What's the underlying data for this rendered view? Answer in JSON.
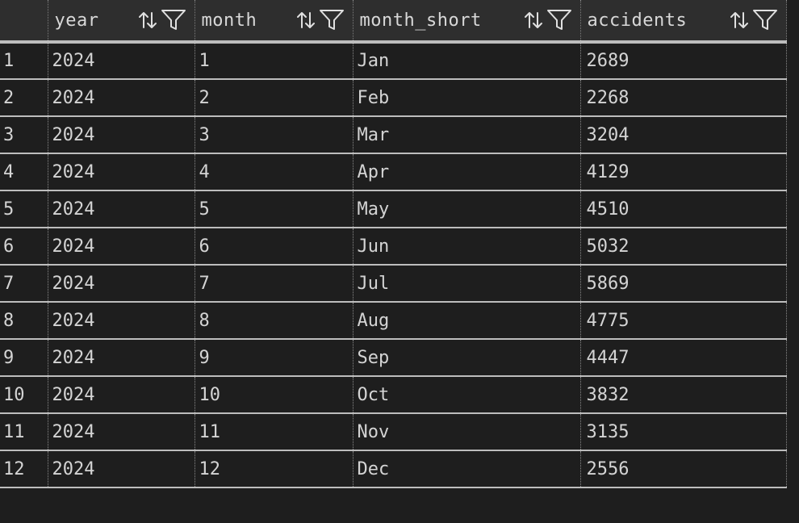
{
  "columns": [
    {
      "key": "index",
      "label": ""
    },
    {
      "key": "year",
      "label": "year"
    },
    {
      "key": "month",
      "label": "month"
    },
    {
      "key": "month_short",
      "label": "month_short"
    },
    {
      "key": "accidents",
      "label": "accidents"
    }
  ],
  "column_icons": [
    "sort-arrows-icon",
    "filter-funnel-icon"
  ],
  "rows": [
    {
      "index": "1",
      "year": "2024",
      "month": "1",
      "month_short": "Jan",
      "accidents": "2689"
    },
    {
      "index": "2",
      "year": "2024",
      "month": "2",
      "month_short": "Feb",
      "accidents": "2268"
    },
    {
      "index": "3",
      "year": "2024",
      "month": "3",
      "month_short": "Mar",
      "accidents": "3204"
    },
    {
      "index": "4",
      "year": "2024",
      "month": "4",
      "month_short": "Apr",
      "accidents": "4129"
    },
    {
      "index": "5",
      "year": "2024",
      "month": "5",
      "month_short": "May",
      "accidents": "4510"
    },
    {
      "index": "6",
      "year": "2024",
      "month": "6",
      "month_short": "Jun",
      "accidents": "5032"
    },
    {
      "index": "7",
      "year": "2024",
      "month": "7",
      "month_short": "Jul",
      "accidents": "5869"
    },
    {
      "index": "8",
      "year": "2024",
      "month": "8",
      "month_short": "Aug",
      "accidents": "4775"
    },
    {
      "index": "9",
      "year": "2024",
      "month": "9",
      "month_short": "Sep",
      "accidents": "4447"
    },
    {
      "index": "10",
      "year": "2024",
      "month": "10",
      "month_short": "Oct",
      "accidents": "3832"
    },
    {
      "index": "11",
      "year": "2024",
      "month": "11",
      "month_short": "Nov",
      "accidents": "3135"
    },
    {
      "index": "12",
      "year": "2024",
      "month": "12",
      "month_short": "Dec",
      "accidents": "2556"
    }
  ],
  "colors": {
    "background": "#1e1e1e",
    "header_background": "#2e2e2e",
    "text": "#d4d4d4",
    "grid_line": "#bdbdbd"
  }
}
